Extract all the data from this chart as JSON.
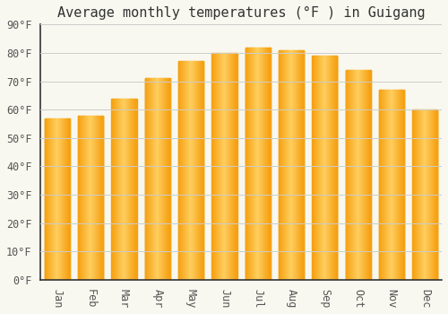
{
  "title": "Average monthly temperatures (°F ) in Guigang",
  "months": [
    "Jan",
    "Feb",
    "Mar",
    "Apr",
    "May",
    "Jun",
    "Jul",
    "Aug",
    "Sep",
    "Oct",
    "Nov",
    "Dec"
  ],
  "values": [
    57,
    58,
    64,
    71,
    77,
    80,
    82,
    81,
    79,
    74,
    67,
    60
  ],
  "bar_color_center": "#FFD060",
  "bar_color_edge": "#F5A010",
  "background_color": "#F8F8F0",
  "grid_color": "#CCCCCC",
  "axis_line_color": "#333333",
  "tick_color": "#555555",
  "title_color": "#333333",
  "ylim": [
    0,
    90
  ],
  "yticks": [
    0,
    10,
    20,
    30,
    40,
    50,
    60,
    70,
    80,
    90
  ],
  "title_fontsize": 11,
  "tick_fontsize": 8.5,
  "figsize": [
    5.0,
    3.5
  ],
  "dpi": 100,
  "bar_width": 0.75
}
